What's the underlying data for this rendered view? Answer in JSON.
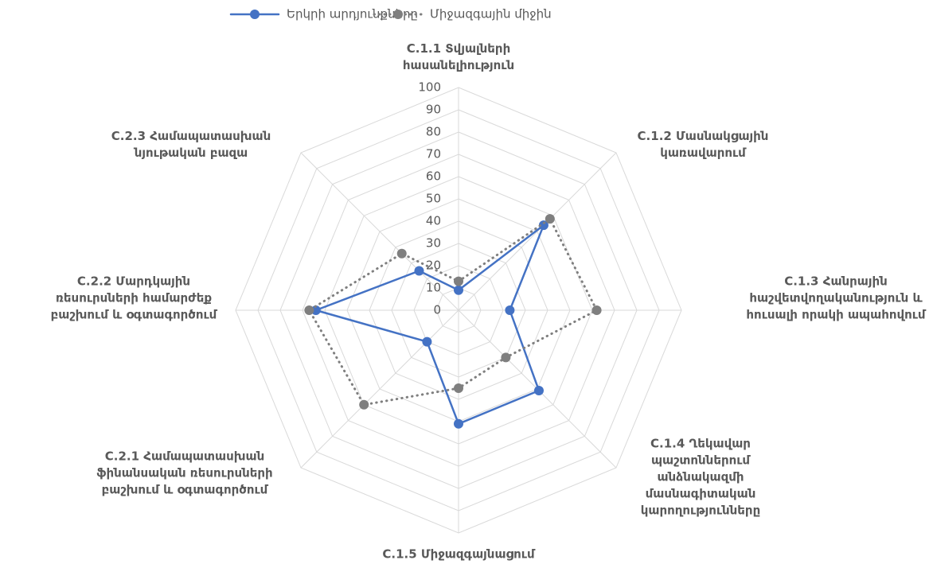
{
  "chart_data": {
    "type": "radar",
    "categories": [
      "C.1.1 Տվյալների\nհասանելիություն",
      "C.1.2 Մասնակցային\nկառավարում",
      "C.1.3 Հանրային\nհաշվետվողականություն և\nհուսալի որակի ապահովում",
      "C.1.4 Ղեկավար\nպաշտոններում\nանձնակազմի\nմասնագիտական\nկարողությունները",
      "C.1.5 Միջազգայնացում",
      "C.2.1 Համապատասխան\nֆինանսական ռեսուրսների\nբաշխում և օգտագործում",
      "C.2.2 Մարդկային\nռեսուրսների համարժեք\nբաշխում և օգտագործում",
      "C.2.3 Համապատասխան\nնյութական բազա"
    ],
    "series": [
      {
        "name": "Երկրի արդյունքները",
        "color": "#4472c4",
        "values": [
          9,
          54,
          23,
          51,
          51,
          20,
          64,
          25
        ]
      },
      {
        "name": "Միջազգային միջին",
        "color": "#7f7f7f",
        "values": [
          13,
          58,
          62,
          30,
          35,
          60,
          67,
          36
        ]
      }
    ],
    "ylim": [
      0,
      100
    ],
    "yticks": [
      0,
      10,
      20,
      30,
      40,
      50,
      60,
      70,
      80,
      90,
      100
    ],
    "grid": true,
    "legend": "top"
  }
}
